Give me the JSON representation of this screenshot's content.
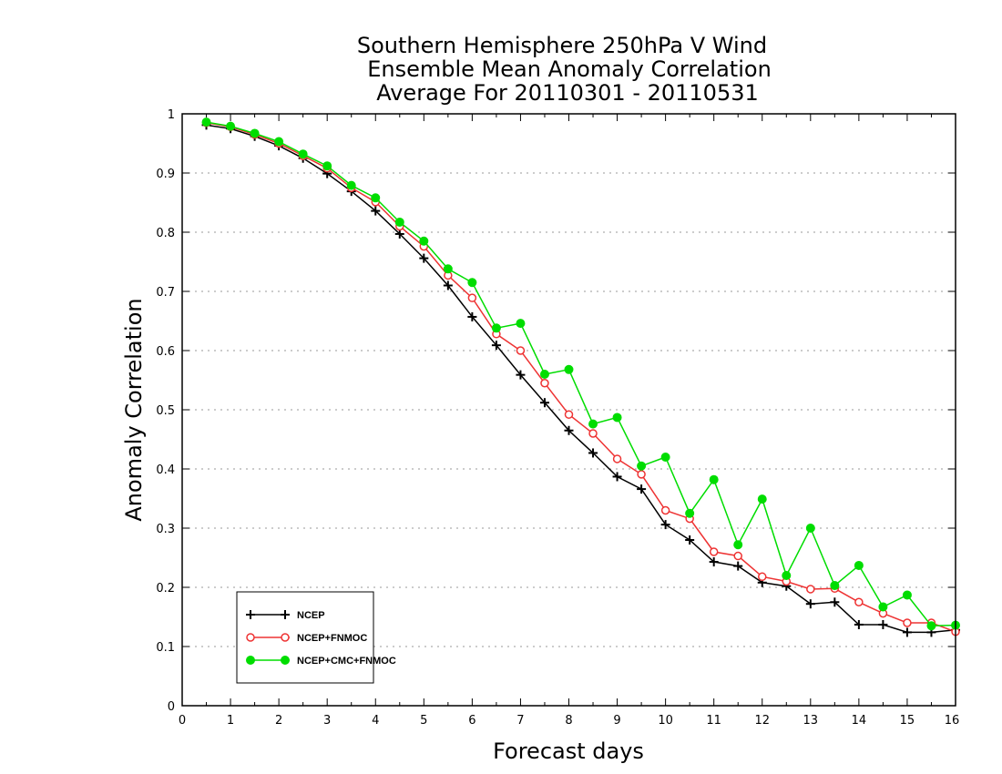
{
  "chart_data": {
    "type": "line",
    "title": [
      "Southern Hemisphere 250hPa V Wind",
      "Ensemble Mean Anomaly Correlation",
      "Average For 20110301 - 20110531"
    ],
    "xlabel": "Forecast days",
    "ylabel": "Anomaly Correlation",
    "xlim": [
      0,
      16
    ],
    "ylim": [
      0,
      1
    ],
    "x_ticks": [
      "0",
      "1",
      "2",
      "3",
      "4",
      "5",
      "6",
      "7",
      "8",
      "9",
      "10",
      "11",
      "12",
      "13",
      "14",
      "15",
      "16"
    ],
    "y_ticks": [
      "0",
      "0.1",
      "0.2",
      "0.3",
      "0.4",
      "0.5",
      "0.6",
      "0.7",
      "0.8",
      "0.9",
      "1"
    ],
    "grid": "horizontal dotted",
    "legend_position": "bottom-left",
    "x": [
      0.5,
      1,
      1.5,
      2,
      2.5,
      3,
      3.5,
      4,
      4.5,
      5,
      5.5,
      6,
      6.5,
      7,
      7.5,
      8,
      8.5,
      9,
      9.5,
      10,
      10.5,
      11,
      11.5,
      12,
      12.5,
      13,
      13.5,
      14,
      14.5,
      15,
      15.5,
      16
    ],
    "series": [
      {
        "name": "NCEP",
        "color": "#000000",
        "marker": "plus",
        "values": [
          0.981,
          0.975,
          0.962,
          0.946,
          0.925,
          0.899,
          0.869,
          0.836,
          0.797,
          0.756,
          0.71,
          0.657,
          0.609,
          0.559,
          0.512,
          0.465,
          0.427,
          0.387,
          0.366,
          0.306,
          0.28,
          0.243,
          0.236,
          0.208,
          0.202,
          0.172,
          0.175,
          0.137,
          0.137,
          0.124,
          0.124,
          0.128
        ]
      },
      {
        "name": "NCEP+FNMOC",
        "color": "#ee3333",
        "marker": "open-circle",
        "values": [
          0.985,
          0.978,
          0.965,
          0.95,
          0.929,
          0.908,
          0.875,
          0.851,
          0.81,
          0.776,
          0.727,
          0.689,
          0.628,
          0.6,
          0.545,
          0.492,
          0.46,
          0.417,
          0.391,
          0.33,
          0.316,
          0.26,
          0.253,
          0.218,
          0.21,
          0.197,
          0.198,
          0.175,
          0.156,
          0.14,
          0.14,
          0.125
        ]
      },
      {
        "name": "NCEP+CMC+FNMOC",
        "color": "#00dd00",
        "marker": "filled-circle",
        "values": [
          0.986,
          0.979,
          0.967,
          0.953,
          0.932,
          0.912,
          0.879,
          0.858,
          0.817,
          0.785,
          0.738,
          0.715,
          0.638,
          0.646,
          0.56,
          0.568,
          0.476,
          0.487,
          0.405,
          0.42,
          0.325,
          0.382,
          0.272,
          0.349,
          0.22,
          0.3,
          0.203,
          0.237,
          0.167,
          0.187,
          0.135,
          0.136
        ]
      }
    ]
  }
}
